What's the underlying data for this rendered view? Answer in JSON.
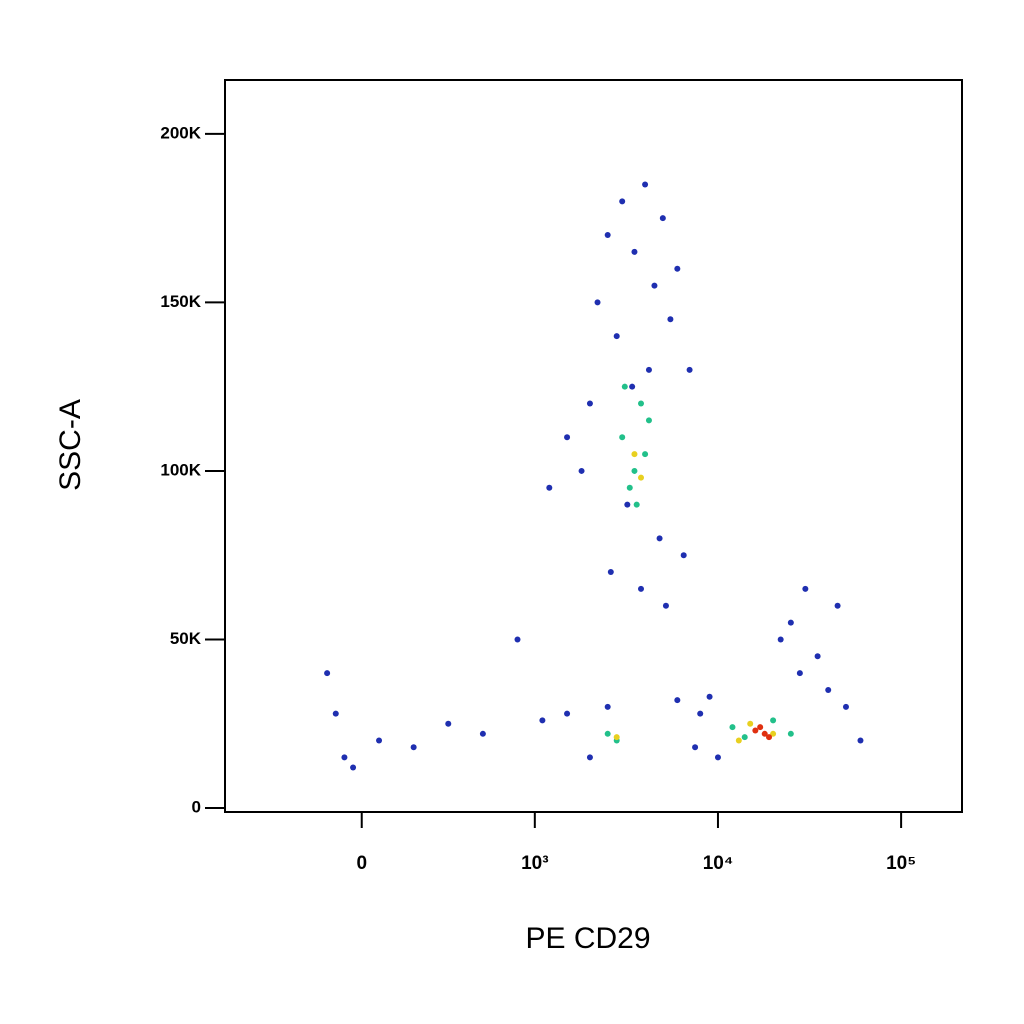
{
  "chart_data": {
    "type": "scatter",
    "x_label": "PE CD29",
    "y_label": "SSC-A",
    "xscale": "log",
    "xlim": [
      -790,
      215000
    ],
    "xticks": [
      0,
      {
        "value": 1000,
        "label": "10³"
      },
      {
        "value": 10000,
        "label": "10⁴"
      },
      {
        "value": 100000,
        "label": "10⁵"
      }
    ],
    "ylim": [
      -1200,
      216000
    ],
    "yticks": [
      0,
      {
        "value": 50000,
        "label": "50K"
      },
      {
        "value": 100000,
        "label": "100K"
      },
      {
        "value": 150000,
        "label": "150K"
      },
      {
        "value": 200000,
        "label": "200K"
      }
    ],
    "series": [
      {
        "color": "#1f2fb0",
        "x": [
          2500,
          3000,
          4000,
          5000,
          6000,
          2200,
          2800,
          3500,
          4500,
          5500,
          7000,
          2000,
          1800,
          3200,
          4800,
          6500,
          2600,
          3800,
          5200,
          1500,
          1200,
          900,
          -200,
          -150,
          100,
          300,
          500,
          -100,
          -50,
          1500,
          2000,
          2500,
          6000,
          8000,
          10000,
          30000,
          25000,
          35000,
          28000,
          40000,
          50000,
          60000,
          45000,
          22000,
          4200,
          3400,
          700,
          1100,
          7500,
          9000
        ],
        "y": [
          170000,
          180000,
          185000,
          175000,
          160000,
          150000,
          140000,
          165000,
          155000,
          145000,
          130000,
          120000,
          100000,
          90000,
          80000,
          75000,
          70000,
          65000,
          60000,
          110000,
          95000,
          50000,
          40000,
          28000,
          20000,
          18000,
          25000,
          15000,
          12000,
          28000,
          15000,
          30000,
          32000,
          28000,
          15000,
          65000,
          55000,
          45000,
          40000,
          35000,
          30000,
          20000,
          60000,
          50000,
          130000,
          125000,
          22000,
          26000,
          18000,
          33000
        ]
      },
      {
        "color": "#22c08a",
        "x": [
          3000,
          3500,
          4000,
          3800,
          3300,
          4200,
          2500,
          2800,
          12000,
          14000,
          20000,
          25000,
          3600,
          3100
        ],
        "y": [
          110000,
          100000,
          105000,
          120000,
          95000,
          115000,
          22000,
          20000,
          24000,
          21000,
          26000,
          22000,
          90000,
          125000
        ]
      },
      {
        "color": "#e8d020",
        "x": [
          3500,
          3800,
          15000,
          13000,
          20000,
          2800
        ],
        "y": [
          105000,
          98000,
          25000,
          20000,
          22000,
          21000
        ]
      },
      {
        "color": "#e03010",
        "x": [
          16000,
          18000,
          17000,
          19000
        ],
        "y": [
          23000,
          22000,
          24000,
          21000
        ]
      }
    ]
  }
}
